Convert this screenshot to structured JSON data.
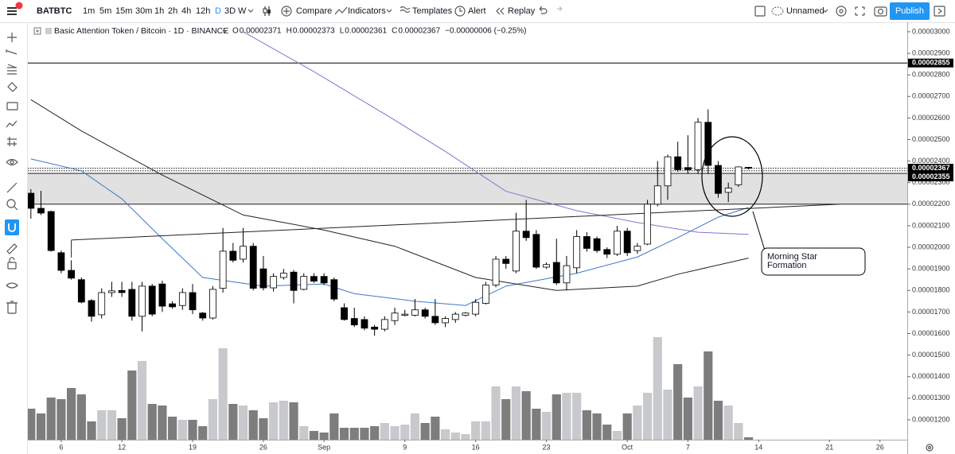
{
  "toolbar": {
    "symbol": "BATBTC",
    "intervals": [
      "1m",
      "5m",
      "15m",
      "30m",
      "1h",
      "2h",
      "4h",
      "12h",
      "D",
      "3D",
      "W"
    ],
    "active_interval": 8,
    "compare": "Compare",
    "indicators": "Indicators",
    "templates": "Templates",
    "alert": "Alert",
    "replay": "Replay",
    "layout": "Unnamed",
    "publish": "Publish"
  },
  "chart_data": {
    "type": "candlestick",
    "legend": {
      "title": "Basic Attention Token / Bitcoin · 1D · BINANCE",
      "o_label": "O",
      "o": "0.00002371",
      "h_label": "H",
      "h": "0.00002373",
      "l_label": "L",
      "l": "0.00002361",
      "c_label": "C",
      "c": "0.00002367",
      "change": "−0.00000006 (−0.25%)"
    },
    "xlim": [
      -0.3,
      86.7
    ],
    "xticks": [
      {
        "value": 3,
        "label": "6"
      },
      {
        "value": 9,
        "label": "12"
      },
      {
        "value": 16,
        "label": "19"
      },
      {
        "value": 23,
        "label": "26"
      },
      {
        "value": 29,
        "label": "Sep"
      },
      {
        "value": 37,
        "label": "9"
      },
      {
        "value": 44,
        "label": "16"
      },
      {
        "value": 51,
        "label": "23"
      },
      {
        "value": 59,
        "label": "Oct"
      },
      {
        "value": 65,
        "label": "7"
      },
      {
        "value": 72,
        "label": "14"
      },
      {
        "value": 79,
        "label": "21"
      },
      {
        "value": 84,
        "label": "26"
      }
    ],
    "ylim": [
      1.056e-05,
      3.044e-05
    ],
    "yticks": [
      {
        "value": 3e-05,
        "label": "0.00003000"
      },
      {
        "value": 2.9e-05,
        "label": "0.00002900"
      },
      {
        "value": 2.8e-05,
        "label": "0.00002800"
      },
      {
        "value": 2.7e-05,
        "label": "0.00002700"
      },
      {
        "value": 2.6e-05,
        "label": "0.00002600"
      },
      {
        "value": 2.5e-05,
        "label": "0.00002500"
      },
      {
        "value": 2.4e-05,
        "label": "0.00002400"
      },
      {
        "value": 2.3e-05,
        "label": "0.00002300"
      },
      {
        "value": 2.2e-05,
        "label": "0.00002200"
      },
      {
        "value": 2.1e-05,
        "label": "0.00002100"
      },
      {
        "value": 2e-05,
        "label": "0.00002000"
      },
      {
        "value": 1.9e-05,
        "label": "0.00001900"
      },
      {
        "value": 1.8e-05,
        "label": "0.00001800"
      },
      {
        "value": 1.7e-05,
        "label": "0.00001700"
      },
      {
        "value": 1.6e-05,
        "label": "0.00001600"
      },
      {
        "value": 1.5e-05,
        "label": "0.00001500"
      },
      {
        "value": 1.4e-05,
        "label": "0.00001400"
      },
      {
        "value": 1.3e-05,
        "label": "0.00001300"
      },
      {
        "value": 1.2e-05,
        "label": "0.00001200"
      }
    ],
    "up_color": "#ffffff",
    "down_color": "#000000",
    "volume_up_color": "#c8c9cd",
    "volume_down_color": "#7d7d7d",
    "open": [
      2.251e-05,
      2.181e-05,
      2.166e-05,
      1.975e-05,
      1.893e-05,
      1.85e-05,
      1.753e-05,
      1.687e-05,
      1.79e-05,
      1.8e-05,
      1.805e-05,
      1.68e-05,
      1.82e-05,
      1.83e-05,
      1.738e-05,
      1.73e-05,
      1.79e-05,
      1.695e-05,
      1.672e-05,
      1.81e-05,
      1.982e-05,
      1.945e-05,
      2.005e-05,
      1.9e-05,
      1.812e-05,
      1.86e-05,
      1.885e-05,
      1.805e-05,
      1.865e-05,
      1.865e-05,
      1.85e-05,
      1.72e-05,
      1.67e-05,
      1.665e-05,
      1.63e-05,
      1.62e-05,
      1.66e-05,
      1.685e-05,
      1.685e-05,
      1.71e-05,
      1.68e-05,
      1.65e-05,
      1.665e-05,
      1.685e-05,
      1.69e-05,
      1.74e-05,
      1.825e-05,
      1.945e-05,
      1.89e-05,
      2.075e-05,
      2.06e-05,
      1.908e-05,
      1.93e-05,
      1.835e-05,
      1.905e-05,
      2.05e-05,
      2.04e-05,
      1.99e-05,
      1.968e-05,
      2.075e-05,
      1.985e-05,
      2.015e-05,
      2.2e-05,
      2.285e-05,
      2.42e-05,
      2.37e-05,
      2.36e-05,
      2.58e-05,
      2.38e-05,
      2.255e-05,
      2.29e-05,
      2.371e-05
    ],
    "high": [
      2.27e-05,
      2.262e-05,
      2.17e-05,
      1.985e-05,
      1.94e-05,
      1.86e-05,
      1.76e-05,
      1.81e-05,
      1.84e-05,
      1.84e-05,
      1.84e-05,
      1.84e-05,
      1.83e-05,
      1.845e-05,
      1.75e-05,
      1.81e-05,
      1.83e-05,
      1.7e-05,
      1.82e-05,
      2.09e-05,
      2.02e-05,
      2.09e-05,
      2.02e-05,
      1.96e-05,
      1.88e-05,
      1.9e-05,
      1.895e-05,
      1.88e-05,
      1.88e-05,
      1.88e-05,
      1.86e-05,
      1.74e-05,
      1.72e-05,
      1.68e-05,
      1.64e-05,
      1.68e-05,
      1.72e-05,
      1.71e-05,
      1.76e-05,
      1.72e-05,
      1.76e-05,
      1.68e-05,
      1.7e-05,
      1.7e-05,
      1.76e-05,
      1.84e-05,
      1.96e-05,
      1.96e-05,
      2.16e-05,
      2.22e-05,
      2.08e-05,
      1.93e-05,
      2.04e-05,
      1.96e-05,
      2.08e-05,
      2.07e-05,
      2.05e-05,
      2e-05,
      2.1e-05,
      2.09e-05,
      2.02e-05,
      2.22e-05,
      2.4e-05,
      2.43e-05,
      2.49e-05,
      2.52e-05,
      2.6e-05,
      2.64e-05,
      2.4e-05,
      2.3e-05,
      2.375e-05,
      2.373e-05
    ],
    "low": [
      2.133e-05,
      2.15e-05,
      1.98e-05,
      1.88e-05,
      1.85e-05,
      1.74e-05,
      1.655e-05,
      1.67e-05,
      1.77e-05,
      1.77e-05,
      1.66e-05,
      1.61e-05,
      1.68e-05,
      1.7e-05,
      1.715e-05,
      1.71e-05,
      1.69e-05,
      1.66e-05,
      1.665e-05,
      1.79e-05,
      1.93e-05,
      1.93e-05,
      1.8e-05,
      1.8e-05,
      1.795e-05,
      1.85e-05,
      1.74e-05,
      1.8e-05,
      1.835e-05,
      1.825e-05,
      1.75e-05,
      1.66e-05,
      1.63e-05,
      1.615e-05,
      1.59e-05,
      1.61e-05,
      1.64e-05,
      1.68e-05,
      1.68e-05,
      1.67e-05,
      1.64e-05,
      1.63e-05,
      1.65e-05,
      1.68e-05,
      1.68e-05,
      1.735e-05,
      1.815e-05,
      1.9e-05,
      1.88e-05,
      2.03e-05,
      1.9e-05,
      1.9e-05,
      1.825e-05,
      1.8e-05,
      1.88e-05,
      1.98e-05,
      1.975e-05,
      1.95e-05,
      1.96e-05,
      1.96e-05,
      1.97e-05,
      2.01e-05,
      2.19e-05,
      2.22e-05,
      2.35e-05,
      2.34e-05,
      2.34e-05,
      2.34e-05,
      2.23e-05,
      2.21e-05,
      2.28e-05,
      2.361e-05
    ],
    "close": [
      2.181e-05,
      2.159e-05,
      1.985e-05,
      1.893e-05,
      1.857e-05,
      1.746e-05,
      1.68e-05,
      1.79e-05,
      1.798e-05,
      1.79e-05,
      1.68e-05,
      1.82e-05,
      1.69e-05,
      1.727e-05,
      1.724e-05,
      1.79e-05,
      1.71e-05,
      1.672e-05,
      1.805e-05,
      1.982e-05,
      1.94e-05,
      2.005e-05,
      1.81e-05,
      1.812e-05,
      1.865e-05,
      1.88e-05,
      1.8e-05,
      1.865e-05,
      1.843e-05,
      1.835e-05,
      1.76e-05,
      1.665e-05,
      1.64e-05,
      1.625e-05,
      1.62e-05,
      1.665e-05,
      1.695e-05,
      1.69e-05,
      1.71e-05,
      1.68e-05,
      1.65e-05,
      1.67e-05,
      1.69e-05,
      1.695e-05,
      1.745e-05,
      1.825e-05,
      1.945e-05,
      1.925e-05,
      2.075e-05,
      2.045e-05,
      1.908e-05,
      1.92e-05,
      1.835e-05,
      1.915e-05,
      2.05e-05,
      1.995e-05,
      1.985e-05,
      1.968e-05,
      2.075e-05,
      1.975e-05,
      2.005e-05,
      2.2e-05,
      2.285e-05,
      2.42e-05,
      2.36e-05,
      2.36e-05,
      2.58e-05,
      2.38e-05,
      2.25e-05,
      2.275e-05,
      2.373e-05,
      2.367e-05
    ],
    "volume": [
      39,
      33,
      53,
      51,
      65,
      57,
      23,
      37,
      37,
      27,
      87,
      99,
      45,
      43,
      29,
      25,
      25,
      17,
      51,
      115,
      45,
      43,
      37,
      27,
      47,
      49,
      47,
      17,
      11,
      9,
      33,
      15,
      15,
      15,
      17,
      21,
      17,
      19,
      33,
      21,
      29,
      13,
      9,
      7,
      23,
      23,
      67,
      51,
      67,
      61,
      39,
      35,
      57,
      59,
      59,
      37,
      33,
      19,
      11,
      33,
      43,
      59,
      129,
      63,
      95,
      53,
      67,
      111,
      49,
      43,
      21,
      3
    ],
    "moving_averages": [
      {
        "color": "#8a6fd1",
        "x": [
          21,
          28,
          36,
          41,
          47,
          54,
          60,
          66,
          71
        ],
        "values": [
          3e-05,
          2.815e-05,
          2.59e-05,
          2.445e-05,
          2.26e-05,
          2.17e-05,
          2.115e-05,
          2.07e-05,
          2.06e-05
        ]
      },
      {
        "color": "#3d78c8",
        "x": [
          0,
          5,
          9,
          13,
          17,
          23,
          29,
          32,
          38,
          43,
          47,
          54,
          60,
          64,
          68,
          71
        ],
        "values": [
          2.41e-05,
          2.355e-05,
          2.225e-05,
          2.04e-05,
          1.86e-05,
          1.82e-05,
          1.83e-05,
          1.785e-05,
          1.75e-05,
          1.73e-05,
          1.82e-05,
          1.88e-05,
          1.955e-05,
          2.045e-05,
          2.14e-05,
          2.185e-05
        ]
      },
      {
        "color": "#222222",
        "x": [
          0,
          5,
          13,
          21,
          29,
          36,
          44,
          52,
          60,
          64,
          71
        ],
        "values": [
          2.685e-05,
          2.54e-05,
          2.335e-05,
          2.15e-05,
          2.08e-05,
          2.005e-05,
          1.86e-05,
          1.8e-05,
          1.82e-05,
          1.875e-05,
          1.95e-05
        ]
      }
    ],
    "trendline": {
      "color": "#222222",
      "x": [
        4,
        80
      ],
      "values": [
        2.034e-05,
        2.2e-05
      ]
    },
    "zone": {
      "color": "#e1e1e1",
      "values": [
        2.2e-05,
        2.343e-05
      ]
    },
    "price_lines": [
      {
        "value": 2.855e-05,
        "label": "0.00002855",
        "style": "solid"
      },
      {
        "value": 2.367e-05,
        "label": "0.00002367",
        "style": "dotted"
      },
      {
        "value": 2.355e-05,
        "label": "0.00002355",
        "style": "dotted"
      }
    ],
    "annotation": [
      "Morning Star",
      "Formation"
    ]
  }
}
